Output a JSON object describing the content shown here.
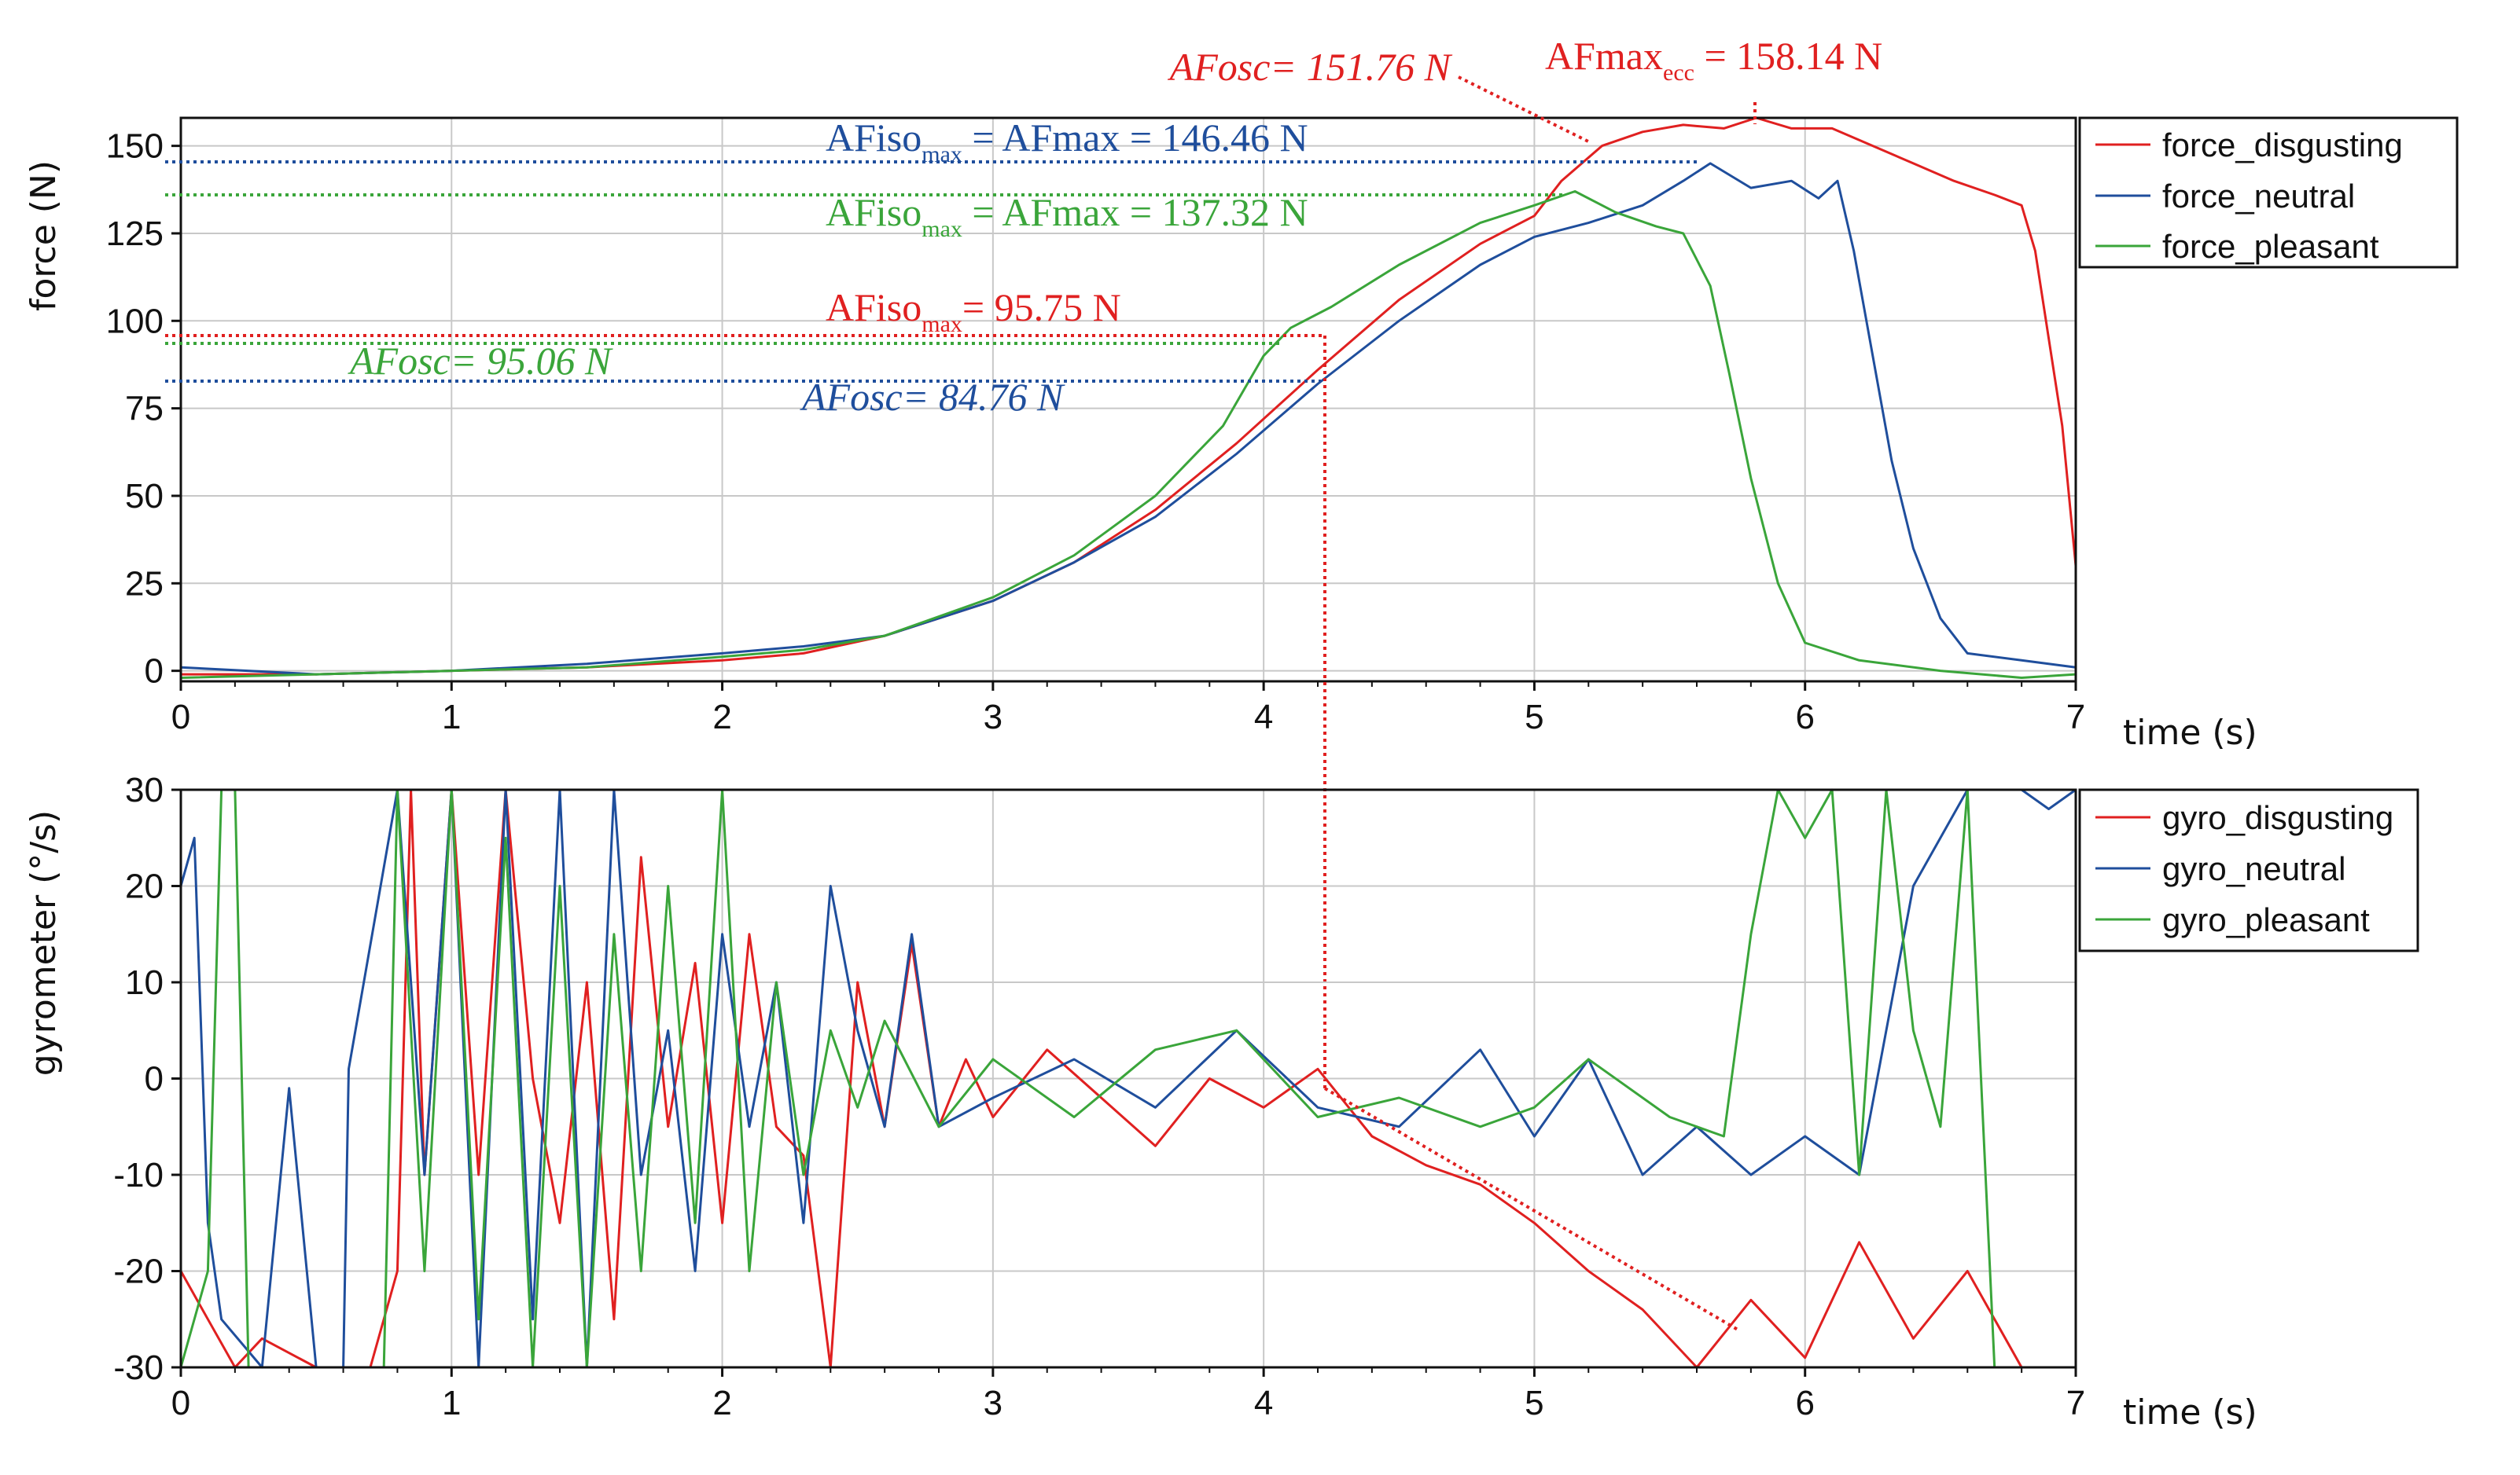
{
  "colors": {
    "disgusting": "#e02020",
    "neutral": "#1f4e9c",
    "pleasant": "#3aa53a",
    "grid": "#c8c8c8"
  },
  "chart_data": [
    {
      "type": "line",
      "ylabel": "force (N)",
      "xlabel": "time (s)",
      "xlim": [
        0,
        7
      ],
      "ylim": [
        -3,
        158
      ],
      "x_ticks": [
        "0",
        "1",
        "2",
        "3",
        "4",
        "5",
        "6",
        "7"
      ],
      "y_ticks": [
        "0",
        "25",
        "50",
        "75",
        "100",
        "125",
        "150"
      ],
      "grid": true,
      "legend_position": "right",
      "series": [
        {
          "name": "force_disgusting",
          "color_key": "disgusting",
          "points": [
            [
              0,
              -1
            ],
            [
              0.5,
              -1
            ],
            [
              1,
              0
            ],
            [
              1.5,
              1
            ],
            [
              2,
              3
            ],
            [
              2.3,
              5
            ],
            [
              2.6,
              10
            ],
            [
              3,
              20
            ],
            [
              3.3,
              31
            ],
            [
              3.6,
              46
            ],
            [
              3.9,
              65
            ],
            [
              4.2,
              86
            ],
            [
              4.5,
              106
            ],
            [
              4.8,
              122
            ],
            [
              5.0,
              130
            ],
            [
              5.1,
              140
            ],
            [
              5.25,
              150
            ],
            [
              5.4,
              154
            ],
            [
              5.55,
              156
            ],
            [
              5.7,
              155
            ],
            [
              5.82,
              158
            ],
            [
              5.95,
              155
            ],
            [
              6.1,
              155
            ],
            [
              6.25,
              150
            ],
            [
              6.4,
              145
            ],
            [
              6.55,
              140
            ],
            [
              6.7,
              136
            ],
            [
              6.8,
              133
            ],
            [
              6.85,
              120
            ],
            [
              6.9,
              95
            ],
            [
              6.95,
              70
            ],
            [
              7.0,
              30
            ]
          ]
        },
        {
          "name": "force_neutral",
          "color_key": "neutral",
          "points": [
            [
              0,
              1
            ],
            [
              0.5,
              -1
            ],
            [
              1,
              0
            ],
            [
              1.5,
              2
            ],
            [
              2,
              5
            ],
            [
              2.3,
              7
            ],
            [
              2.6,
              10
            ],
            [
              3,
              20
            ],
            [
              3.3,
              31
            ],
            [
              3.6,
              44
            ],
            [
              3.9,
              62
            ],
            [
              4.2,
              82
            ],
            [
              4.5,
              100
            ],
            [
              4.8,
              116
            ],
            [
              5.0,
              124
            ],
            [
              5.2,
              128
            ],
            [
              5.4,
              133
            ],
            [
              5.55,
              140
            ],
            [
              5.65,
              145
            ],
            [
              5.8,
              138
            ],
            [
              5.95,
              140
            ],
            [
              6.05,
              135
            ],
            [
              6.12,
              140
            ],
            [
              6.18,
              120
            ],
            [
              6.25,
              90
            ],
            [
              6.32,
              60
            ],
            [
              6.4,
              35
            ],
            [
              6.5,
              15
            ],
            [
              6.6,
              5
            ],
            [
              6.8,
              3
            ],
            [
              7.0,
              1
            ]
          ]
        },
        {
          "name": "force_pleasant",
          "color_key": "pleasant",
          "points": [
            [
              0,
              -2
            ],
            [
              0.5,
              -1
            ],
            [
              1,
              0
            ],
            [
              1.5,
              1
            ],
            [
              2,
              4
            ],
            [
              2.3,
              6
            ],
            [
              2.6,
              10
            ],
            [
              3,
              21
            ],
            [
              3.3,
              33
            ],
            [
              3.6,
              50
            ],
            [
              3.85,
              70
            ],
            [
              4.0,
              90
            ],
            [
              4.1,
              98
            ],
            [
              4.25,
              104
            ],
            [
              4.5,
              116
            ],
            [
              4.8,
              128
            ],
            [
              5.0,
              133
            ],
            [
              5.15,
              137
            ],
            [
              5.3,
              131
            ],
            [
              5.45,
              127
            ],
            [
              5.55,
              125
            ],
            [
              5.65,
              110
            ],
            [
              5.72,
              85
            ],
            [
              5.8,
              55
            ],
            [
              5.9,
              25
            ],
            [
              6.0,
              8
            ],
            [
              6.2,
              3
            ],
            [
              6.5,
              0
            ],
            [
              6.8,
              -2
            ],
            [
              7.0,
              -1
            ]
          ]
        }
      ]
    },
    {
      "type": "line",
      "ylabel": "gyrometer (°/s)",
      "xlabel": "time (s)",
      "xlim": [
        0,
        7
      ],
      "ylim": [
        -30,
        30
      ],
      "x_ticks": [
        "0",
        "1",
        "2",
        "3",
        "4",
        "5",
        "6",
        "7"
      ],
      "y_ticks": [
        "-30",
        "-20",
        "-10",
        "0",
        "10",
        "20",
        "30"
      ],
      "grid": true,
      "legend_position": "right",
      "series": [
        {
          "name": "gyro_disgusting",
          "color_key": "disgusting",
          "points": [
            [
              0,
              -20
            ],
            [
              0.1,
              -25
            ],
            [
              0.2,
              -30
            ],
            [
              0.3,
              -27
            ],
            [
              0.5,
              -30
            ],
            [
              0.7,
              -30
            ],
            [
              0.8,
              -20
            ],
            [
              0.85,
              30
            ],
            [
              0.9,
              -10
            ],
            [
              1.0,
              30
            ],
            [
              1.1,
              -10
            ],
            [
              1.2,
              30
            ],
            [
              1.3,
              0
            ],
            [
              1.4,
              -15
            ],
            [
              1.5,
              10
            ],
            [
              1.6,
              -25
            ],
            [
              1.7,
              23
            ],
            [
              1.8,
              -5
            ],
            [
              1.9,
              12
            ],
            [
              2.0,
              -15
            ],
            [
              2.1,
              15
            ],
            [
              2.2,
              -5
            ],
            [
              2.3,
              -8
            ],
            [
              2.4,
              -30
            ],
            [
              2.5,
              10
            ],
            [
              2.6,
              -5
            ],
            [
              2.7,
              14
            ],
            [
              2.8,
              -5
            ],
            [
              2.9,
              2
            ],
            [
              3.0,
              -4
            ],
            [
              3.2,
              3
            ],
            [
              3.4,
              -2
            ],
            [
              3.6,
              -7
            ],
            [
              3.8,
              0
            ],
            [
              4.0,
              -3
            ],
            [
              4.2,
              1
            ],
            [
              4.4,
              -6
            ],
            [
              4.6,
              -9
            ],
            [
              4.8,
              -11
            ],
            [
              5.0,
              -15
            ],
            [
              5.2,
              -20
            ],
            [
              5.4,
              -24
            ],
            [
              5.6,
              -30
            ],
            [
              5.8,
              -23
            ],
            [
              6.0,
              -29
            ],
            [
              6.2,
              -17
            ],
            [
              6.4,
              -27
            ],
            [
              6.6,
              -20
            ],
            [
              6.8,
              -30
            ]
          ]
        },
        {
          "name": "gyro_neutral",
          "color_key": "neutral",
          "points": [
            [
              0,
              20
            ],
            [
              0.05,
              25
            ],
            [
              0.1,
              -15
            ],
            [
              0.15,
              -25
            ],
            [
              0.3,
              -30
            ],
            [
              0.4,
              -1
            ],
            [
              0.5,
              -30
            ],
            [
              0.6,
              -30
            ],
            [
              0.62,
              1
            ],
            [
              0.8,
              30
            ],
            [
              0.9,
              -10
            ],
            [
              1.0,
              30
            ],
            [
              1.1,
              -30
            ],
            [
              1.2,
              30
            ],
            [
              1.3,
              -25
            ],
            [
              1.4,
              30
            ],
            [
              1.5,
              -30
            ],
            [
              1.6,
              30
            ],
            [
              1.7,
              -10
            ],
            [
              1.8,
              5
            ],
            [
              1.9,
              -20
            ],
            [
              2.0,
              15
            ],
            [
              2.1,
              -5
            ],
            [
              2.2,
              10
            ],
            [
              2.3,
              -15
            ],
            [
              2.4,
              20
            ],
            [
              2.5,
              5
            ],
            [
              2.6,
              -5
            ],
            [
              2.7,
              15
            ],
            [
              2.8,
              -5
            ],
            [
              3.0,
              -2
            ],
            [
              3.3,
              2
            ],
            [
              3.6,
              -3
            ],
            [
              3.9,
              5
            ],
            [
              4.2,
              -3
            ],
            [
              4.5,
              -5
            ],
            [
              4.8,
              3
            ],
            [
              5.0,
              -6
            ],
            [
              5.2,
              2
            ],
            [
              5.4,
              -10
            ],
            [
              5.6,
              -5
            ],
            [
              5.8,
              -10
            ],
            [
              6.0,
              -6
            ],
            [
              6.2,
              -10
            ],
            [
              6.4,
              20
            ],
            [
              6.6,
              30
            ],
            [
              6.8,
              30
            ],
            [
              6.9,
              28
            ],
            [
              7.0,
              30
            ]
          ]
        },
        {
          "name": "gyro_pleasant",
          "color_key": "pleasant",
          "points": [
            [
              0,
              -30
            ],
            [
              0.1,
              -20
            ],
            [
              0.15,
              30
            ],
            [
              0.2,
              30
            ],
            [
              0.25,
              -30
            ],
            [
              0.75,
              -30
            ],
            [
              0.8,
              30
            ],
            [
              0.9,
              -20
            ],
            [
              1.0,
              30
            ],
            [
              1.1,
              -25
            ],
            [
              1.2,
              25
            ],
            [
              1.3,
              -30
            ],
            [
              1.4,
              20
            ],
            [
              1.5,
              -30
            ],
            [
              1.6,
              15
            ],
            [
              1.7,
              -20
            ],
            [
              1.8,
              20
            ],
            [
              1.9,
              -15
            ],
            [
              2.0,
              30
            ],
            [
              2.1,
              -20
            ],
            [
              2.2,
              10
            ],
            [
              2.3,
              -10
            ],
            [
              2.4,
              5
            ],
            [
              2.5,
              -3
            ],
            [
              2.6,
              6
            ],
            [
              2.8,
              -5
            ],
            [
              3.0,
              2
            ],
            [
              3.3,
              -4
            ],
            [
              3.6,
              3
            ],
            [
              3.9,
              5
            ],
            [
              4.2,
              -4
            ],
            [
              4.5,
              -2
            ],
            [
              4.8,
              -5
            ],
            [
              5.0,
              -3
            ],
            [
              5.2,
              2
            ],
            [
              5.5,
              -4
            ],
            [
              5.7,
              -6
            ],
            [
              5.8,
              15
            ],
            [
              5.9,
              30
            ],
            [
              6.0,
              25
            ],
            [
              6.1,
              30
            ],
            [
              6.2,
              -10
            ],
            [
              6.3,
              30
            ],
            [
              6.4,
              5
            ],
            [
              6.5,
              -5
            ],
            [
              6.6,
              30
            ],
            [
              6.7,
              -30
            ],
            [
              6.8,
              -30
            ]
          ]
        }
      ]
    }
  ],
  "annotations": {
    "afosc_disgusting": "AFosc= 151.76 N",
    "afmax_ecc_base": "AFmax",
    "afmax_ecc_sub": "ecc",
    "afmax_ecc_value": " = 158.14 N",
    "afiso_neutral_base": "AFiso",
    "afiso_neutral_sub": "max",
    "afiso_neutral_value": " = AFmax = 146.46 N",
    "afiso_pleasant_base": "AFiso",
    "afiso_pleasant_sub": "max",
    "afiso_pleasant_value": " = AFmax = 137.32 N",
    "afiso_disgusting_base": "AFiso",
    "afiso_disgusting_sub": "max",
    "afiso_disgusting_value": "= 95.75 N",
    "afosc_pleasant": "AFosc= 95.06 N",
    "afosc_neutral": "AFosc= 84.76 N"
  }
}
